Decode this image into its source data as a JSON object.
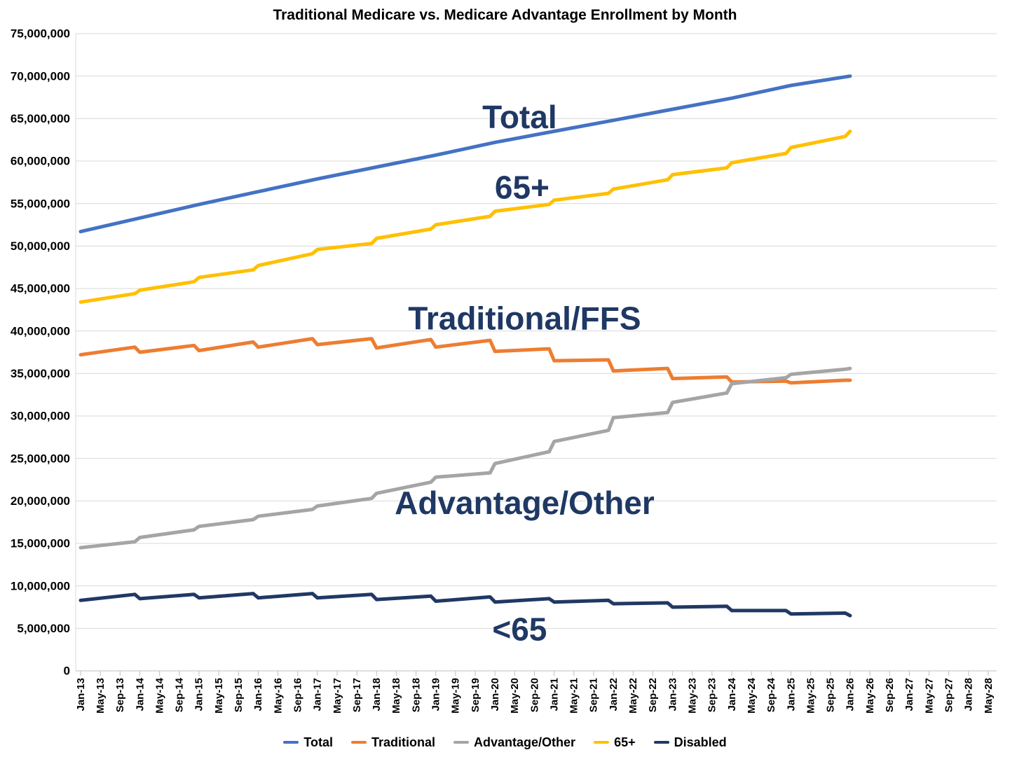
{
  "title": "Traditional Medicare vs. Medicare Advantage Enrollment by Month",
  "colors": {
    "total": "#4472C4",
    "traditional": "#ED7D31",
    "advantage": "#A5A5A5",
    "senior": "#FFC000",
    "disabled": "#203864",
    "annotation": "#1F3864",
    "gridline": "#D9D9D9",
    "axis": "#BFBFBF"
  },
  "chart_data": {
    "type": "line",
    "title": "Traditional Medicare vs. Medicare Advantage Enrollment by Month",
    "xlabel": "",
    "ylabel": "",
    "y_unit": "enrollees",
    "series_value_unit": "millions of enrollees",
    "x_unit": "months since Jan-2013",
    "ylim": [
      0,
      75000000
    ],
    "y_tick_step": 5000000,
    "grid": "horizontal",
    "legend_position": "bottom",
    "x_axis_extends_to": "May-28",
    "data_ends_at": "Jan-26",
    "y_tick_labels": [
      "0",
      "5,000,000",
      "10,000,000",
      "15,000,000",
      "20,000,000",
      "25,000,000",
      "30,000,000",
      "35,000,000",
      "40,000,000",
      "45,000,000",
      "50,000,000",
      "55,000,000",
      "60,000,000",
      "65,000,000",
      "70,000,000",
      "75,000,000"
    ],
    "x_tick_labels": [
      "Jan-13",
      "May-13",
      "Sep-13",
      "Jan-14",
      "May-14",
      "Sep-14",
      "Jan-15",
      "May-15",
      "Sep-15",
      "Jan-16",
      "May-16",
      "Sep-16",
      "Jan-17",
      "May-17",
      "Sep-17",
      "Jan-18",
      "May-18",
      "Sep-18",
      "Jan-19",
      "May-19",
      "Sep-19",
      "Jan-20",
      "May-20",
      "Sep-20",
      "Jan-21",
      "May-21",
      "Sep-21",
      "Jan-22",
      "May-22",
      "Sep-22",
      "Jan-23",
      "May-23",
      "Sep-23",
      "Jan-24",
      "May-24",
      "Sep-24",
      "Jan-25",
      "May-25",
      "Sep-25",
      "Jan-26",
      "May-26",
      "Sep-26",
      "Jan-27",
      "May-27",
      "Sep-27",
      "Jan-28",
      "May-28"
    ],
    "x_tick_step_months": 4,
    "series": [
      {
        "name": "Total",
        "color": "#4472C4",
        "points": [
          [
            0,
            51.7
          ],
          [
            12,
            53.3
          ],
          [
            24,
            54.9
          ],
          [
            36,
            56.4
          ],
          [
            48,
            57.9
          ],
          [
            60,
            59.3
          ],
          [
            72,
            60.7
          ],
          [
            84,
            62.2
          ],
          [
            96,
            63.5
          ],
          [
            108,
            64.8
          ],
          [
            120,
            66.1
          ],
          [
            132,
            67.4
          ],
          [
            144,
            68.9
          ],
          [
            156,
            70.0
          ]
        ]
      },
      {
        "name": "Traditional",
        "color": "#ED7D31",
        "points": [
          [
            0,
            37.2
          ],
          [
            11,
            38.1
          ],
          [
            12,
            37.5
          ],
          [
            23,
            38.3
          ],
          [
            24,
            37.7
          ],
          [
            35,
            38.7
          ],
          [
            36,
            38.1
          ],
          [
            47,
            39.1
          ],
          [
            48,
            38.4
          ],
          [
            59,
            39.1
          ],
          [
            60,
            38.0
          ],
          [
            71,
            39.0
          ],
          [
            72,
            38.1
          ],
          [
            83,
            38.9
          ],
          [
            84,
            37.6
          ],
          [
            95,
            37.9
          ],
          [
            96,
            36.5
          ],
          [
            107,
            36.6
          ],
          [
            108,
            35.3
          ],
          [
            119,
            35.6
          ],
          [
            120,
            34.4
          ],
          [
            131,
            34.6
          ],
          [
            132,
            34.0
          ],
          [
            143,
            34.1
          ],
          [
            144,
            33.9
          ],
          [
            155,
            34.2
          ],
          [
            156,
            34.2
          ]
        ]
      },
      {
        "name": "Advantage/Other",
        "color": "#A5A5A5",
        "points": [
          [
            0,
            14.5
          ],
          [
            11,
            15.2
          ],
          [
            12,
            15.7
          ],
          [
            23,
            16.6
          ],
          [
            24,
            17.0
          ],
          [
            35,
            17.8
          ],
          [
            36,
            18.2
          ],
          [
            47,
            19.0
          ],
          [
            48,
            19.4
          ],
          [
            59,
            20.3
          ],
          [
            60,
            20.9
          ],
          [
            71,
            22.2
          ],
          [
            72,
            22.8
          ],
          [
            83,
            23.3
          ],
          [
            84,
            24.4
          ],
          [
            95,
            25.8
          ],
          [
            96,
            27.0
          ],
          [
            107,
            28.3
          ],
          [
            108,
            29.8
          ],
          [
            119,
            30.4
          ],
          [
            120,
            31.6
          ],
          [
            131,
            32.7
          ],
          [
            132,
            33.8
          ],
          [
            143,
            34.5
          ],
          [
            144,
            34.9
          ],
          [
            155,
            35.5
          ],
          [
            156,
            35.6
          ]
        ]
      },
      {
        "name": "65+",
        "color": "#FFC000",
        "points": [
          [
            0,
            43.4
          ],
          [
            11,
            44.4
          ],
          [
            12,
            44.8
          ],
          [
            23,
            45.8
          ],
          [
            24,
            46.3
          ],
          [
            35,
            47.2
          ],
          [
            36,
            47.7
          ],
          [
            47,
            49.1
          ],
          [
            48,
            49.6
          ],
          [
            59,
            50.3
          ],
          [
            60,
            50.9
          ],
          [
            71,
            52.0
          ],
          [
            72,
            52.5
          ],
          [
            83,
            53.5
          ],
          [
            84,
            54.1
          ],
          [
            95,
            54.9
          ],
          [
            96,
            55.4
          ],
          [
            107,
            56.2
          ],
          [
            108,
            56.7
          ],
          [
            119,
            57.8
          ],
          [
            120,
            58.4
          ],
          [
            131,
            59.2
          ],
          [
            132,
            59.8
          ],
          [
            143,
            60.9
          ],
          [
            144,
            61.6
          ],
          [
            155,
            62.9
          ],
          [
            156,
            63.5
          ]
        ]
      },
      {
        "name": "Disabled",
        "color": "#203864",
        "points": [
          [
            0,
            8.3
          ],
          [
            11,
            9.0
          ],
          [
            12,
            8.5
          ],
          [
            23,
            9.0
          ],
          [
            24,
            8.6
          ],
          [
            35,
            9.1
          ],
          [
            36,
            8.6
          ],
          [
            47,
            9.1
          ],
          [
            48,
            8.6
          ],
          [
            59,
            9.0
          ],
          [
            60,
            8.4
          ],
          [
            71,
            8.8
          ],
          [
            72,
            8.2
          ],
          [
            83,
            8.7
          ],
          [
            84,
            8.1
          ],
          [
            95,
            8.5
          ],
          [
            96,
            8.1
          ],
          [
            107,
            8.3
          ],
          [
            108,
            7.9
          ],
          [
            119,
            8.0
          ],
          [
            120,
            7.5
          ],
          [
            131,
            7.6
          ],
          [
            132,
            7.1
          ],
          [
            143,
            7.1
          ],
          [
            144,
            6.7
          ],
          [
            155,
            6.8
          ],
          [
            156,
            6.5
          ]
        ]
      }
    ],
    "annotations": [
      {
        "text": "Total",
        "m": 89,
        "v": 65.2
      },
      {
        "text": "65+",
        "m": 89.5,
        "v": 56.9
      },
      {
        "text": "Traditional/FFS",
        "m": 90,
        "v": 41.5
      },
      {
        "text": "Advantage/Other",
        "m": 90,
        "v": 19.8
      },
      {
        "text": "<65",
        "m": 89,
        "v": 4.9
      }
    ]
  },
  "legend": {
    "items": [
      {
        "label": "Total",
        "color": "#4472C4"
      },
      {
        "label": "Traditional",
        "color": "#ED7D31"
      },
      {
        "label": "Advantage/Other",
        "color": "#A5A5A5"
      },
      {
        "label": "65+",
        "color": "#FFC000"
      },
      {
        "label": "Disabled",
        "color": "#203864"
      }
    ]
  }
}
